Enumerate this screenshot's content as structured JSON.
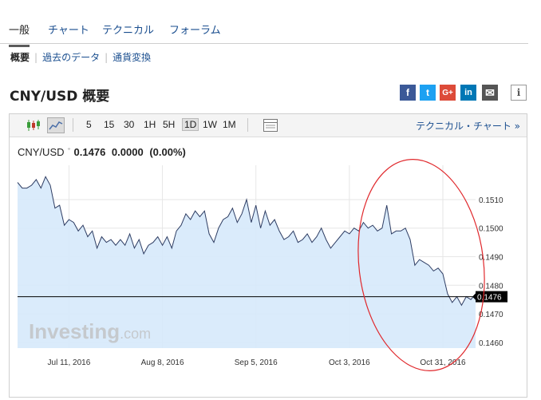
{
  "tabs": [
    {
      "label": "一般"
    },
    {
      "label": "チャート"
    },
    {
      "label": "テクニカル"
    },
    {
      "label": "フォーラム"
    }
  ],
  "subnav": [
    {
      "label": "概要"
    },
    {
      "label": "過去のデータ"
    },
    {
      "label": "通貨変換"
    }
  ],
  "page_title": "CNY/USD 概要",
  "share": [
    {
      "icon": "facebook-icon",
      "glyph": "f",
      "color": "#3b5998"
    },
    {
      "icon": "twitter-icon",
      "glyph": "t",
      "color": "#1da1f2"
    },
    {
      "icon": "google-plus-icon",
      "glyph": "G+",
      "color": "#dd4b39"
    },
    {
      "icon": "linkedin-icon",
      "glyph": "in",
      "color": "#0077b5"
    },
    {
      "icon": "email-icon",
      "glyph": "✉",
      "color": "#555555"
    },
    {
      "icon": "info-icon",
      "glyph": "i",
      "color": "#ffffff"
    }
  ],
  "toolbar": {
    "intervals": [
      "5",
      "15",
      "30",
      "1H",
      "5H",
      "1D",
      "1W",
      "1M"
    ],
    "selected_interval": "1D",
    "technical_link": "テクニカル・チャート »"
  },
  "quote": {
    "symbol": "CNY/USD",
    "price": "0.1476",
    "change": "0.0000",
    "change_pct": "(0.00%)"
  },
  "chart_data": {
    "type": "area",
    "title": "CNY/USD",
    "x_labels": [
      "Jul 11, 2016",
      "Aug 8, 2016",
      "Sep 5, 2016",
      "Oct 3, 2016",
      "Oct 31, 2016"
    ],
    "x_label_index": [
      11,
      31,
      51,
      71,
      91
    ],
    "y_ticks": [
      "0.1510",
      "0.1500",
      "0.1490",
      "0.1480",
      "0.1470",
      "0.1460"
    ],
    "ylim": [
      0.1458,
      0.1522
    ],
    "current_price": 0.1476,
    "current_price_label": "0.1476",
    "watermark": "Investing.com",
    "annotation": "red-ellipse-highlight",
    "colors": {
      "fill": "#d6e9fb",
      "line": "#2e3d63",
      "price_line": "#000000",
      "ellipse": "#e0282c"
    },
    "values": [
      0.1516,
      0.1514,
      0.1514,
      0.1515,
      0.1517,
      0.1514,
      0.1518,
      0.1515,
      0.1507,
      0.1508,
      0.1501,
      0.1503,
      0.1502,
      0.1499,
      0.1501,
      0.1497,
      0.1499,
      0.1493,
      0.1497,
      0.1495,
      0.1496,
      0.1494,
      0.1496,
      0.1494,
      0.1498,
      0.1493,
      0.1496,
      0.1491,
      0.1494,
      0.1495,
      0.1497,
      0.1494,
      0.1497,
      0.1493,
      0.1499,
      0.1501,
      0.1505,
      0.1503,
      0.1506,
      0.1504,
      0.1506,
      0.1498,
      0.1495,
      0.15,
      0.1503,
      0.1504,
      0.1507,
      0.1502,
      0.1505,
      0.151,
      0.1502,
      0.1508,
      0.15,
      0.1506,
      0.1501,
      0.1503,
      0.1499,
      0.1496,
      0.1497,
      0.1499,
      0.1495,
      0.1496,
      0.1498,
      0.1495,
      0.1497,
      0.15,
      0.1496,
      0.1493,
      0.1495,
      0.1497,
      0.1499,
      0.1498,
      0.15,
      0.1499,
      0.1502,
      0.15,
      0.1501,
      0.1499,
      0.15,
      0.1508,
      0.1498,
      0.1499,
      0.1499,
      0.15,
      0.1496,
      0.1487,
      0.1489,
      0.1488,
      0.1487,
      0.1485,
      0.1486,
      0.1484,
      0.1477,
      0.1474,
      0.1476,
      0.1473,
      0.1476,
      0.1475,
      0.1477
    ]
  }
}
